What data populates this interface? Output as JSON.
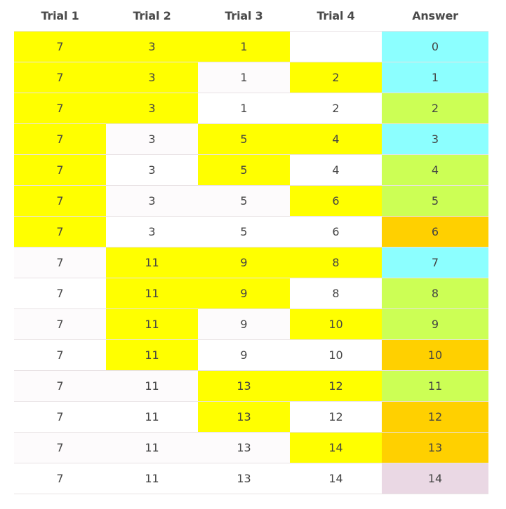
{
  "headers": [
    "Trial 1",
    "Trial 2",
    "Trial 3",
    "Trial 4",
    "Answer"
  ],
  "colors": {
    "yellow": "#ffff00",
    "cyan": "#8cffff",
    "lime": "#ccff55",
    "orange": "#ffd000",
    "pink": "#ead8e4",
    "white": "#ffffff"
  },
  "rows": [
    {
      "values": [
        "7",
        "3",
        "1",
        "",
        "0"
      ],
      "fills": [
        "yellow",
        "yellow",
        "yellow",
        "white",
        "cyan"
      ]
    },
    {
      "values": [
        "7",
        "3",
        "1",
        "2",
        "1"
      ],
      "fills": [
        "yellow",
        "yellow",
        "white",
        "yellow",
        "cyan"
      ]
    },
    {
      "values": [
        "7",
        "3",
        "1",
        "2",
        "2"
      ],
      "fills": [
        "yellow",
        "yellow",
        "white",
        "white",
        "lime"
      ]
    },
    {
      "values": [
        "7",
        "3",
        "5",
        "4",
        "3"
      ],
      "fills": [
        "yellow",
        "white",
        "yellow",
        "yellow",
        "cyan"
      ]
    },
    {
      "values": [
        "7",
        "3",
        "5",
        "4",
        "4"
      ],
      "fills": [
        "yellow",
        "white",
        "yellow",
        "white",
        "lime"
      ]
    },
    {
      "values": [
        "7",
        "3",
        "5",
        "6",
        "5"
      ],
      "fills": [
        "yellow",
        "white",
        "white",
        "yellow",
        "lime"
      ]
    },
    {
      "values": [
        "7",
        "3",
        "5",
        "6",
        "6"
      ],
      "fills": [
        "yellow",
        "white",
        "white",
        "white",
        "orange"
      ]
    },
    {
      "values": [
        "7",
        "11",
        "9",
        "8",
        "7"
      ],
      "fills": [
        "white",
        "yellow",
        "yellow",
        "yellow",
        "cyan"
      ]
    },
    {
      "values": [
        "7",
        "11",
        "9",
        "8",
        "8"
      ],
      "fills": [
        "white",
        "yellow",
        "yellow",
        "white",
        "lime"
      ]
    },
    {
      "values": [
        "7",
        "11",
        "9",
        "10",
        "9"
      ],
      "fills": [
        "white",
        "yellow",
        "white",
        "yellow",
        "lime"
      ]
    },
    {
      "values": [
        "7",
        "11",
        "9",
        "10",
        "10"
      ],
      "fills": [
        "white",
        "yellow",
        "white",
        "white",
        "orange"
      ]
    },
    {
      "values": [
        "7",
        "11",
        "13",
        "12",
        "11"
      ],
      "fills": [
        "white",
        "white",
        "yellow",
        "yellow",
        "lime"
      ]
    },
    {
      "values": [
        "7",
        "11",
        "13",
        "12",
        "12"
      ],
      "fills": [
        "white",
        "white",
        "yellow",
        "white",
        "orange"
      ]
    },
    {
      "values": [
        "7",
        "11",
        "13",
        "14",
        "13"
      ],
      "fills": [
        "white",
        "white",
        "white",
        "yellow",
        "orange"
      ]
    },
    {
      "values": [
        "7",
        "11",
        "13",
        "14",
        "14"
      ],
      "fills": [
        "white",
        "white",
        "white",
        "white",
        "pink"
      ]
    }
  ]
}
